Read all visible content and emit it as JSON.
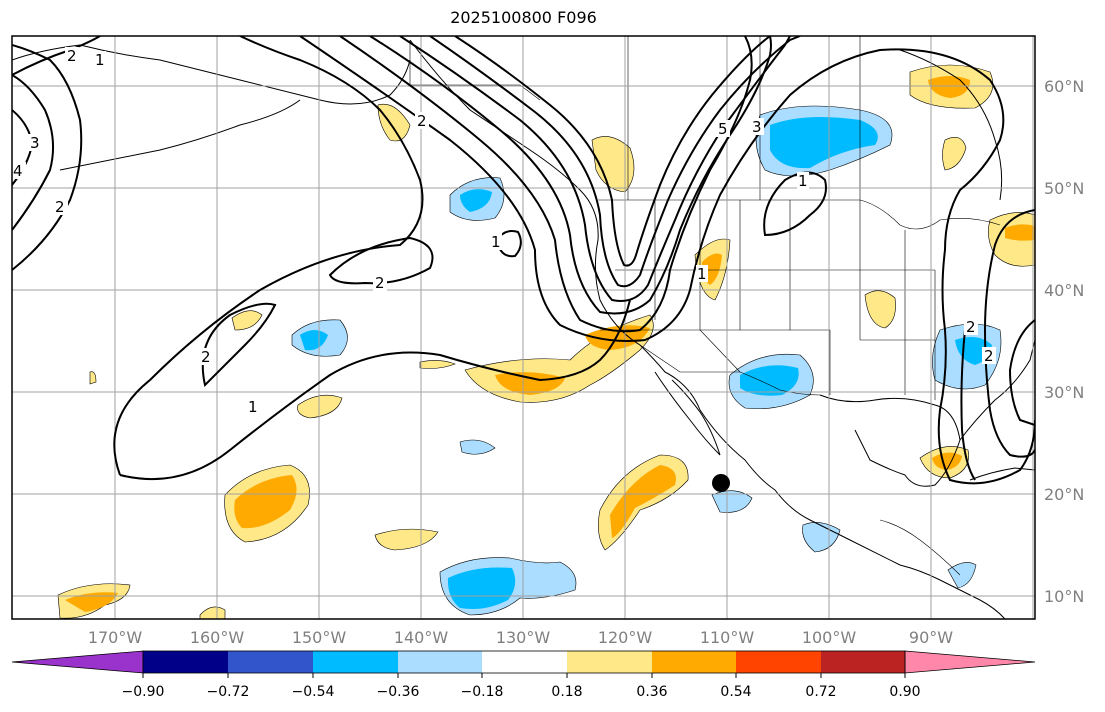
{
  "title": "2025100800 F096",
  "map": {
    "lon_labels": [
      "170°W",
      "160°W",
      "150°W",
      "140°W",
      "130°W",
      "120°W",
      "110°W",
      "100°W",
      "90°W"
    ],
    "lat_labels": [
      "60°N",
      "50°N",
      "40°N",
      "30°N",
      "20°N",
      "10°N"
    ],
    "contour_labels": [
      "2",
      "1",
      "2",
      "3",
      "4",
      "2",
      "2",
      "1",
      "2",
      "1",
      "1",
      "5",
      "3",
      "1",
      "2",
      "2"
    ],
    "colors": {
      "ocean": "#ffffff",
      "coast": "#000000",
      "grid": "#a0a0a0",
      "contour": "#000000"
    }
  },
  "colorbar": {
    "colors": [
      "#9933cc",
      "#000088",
      "#3355cc",
      "#00bbff",
      "#aaddff",
      "#ffffff",
      "#ffe888",
      "#ffaa00",
      "#ff4400",
      "#bb2222",
      "#ff88aa"
    ],
    "labels": [
      "−0.90",
      "−0.72",
      "−0.54",
      "−0.36",
      "−0.18",
      "0.18",
      "0.36",
      "0.54",
      "0.72",
      "0.90"
    ]
  },
  "marker": {
    "name": "black-dot",
    "color": "#000000"
  }
}
